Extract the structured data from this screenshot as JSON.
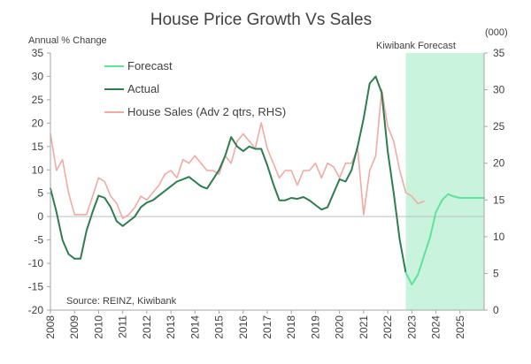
{
  "chart_data": {
    "type": "line",
    "title": "House Price Growth Vs Sales",
    "left_axis_label": "Annual % Change",
    "right_axis_label": "(000)",
    "forecast_region_label": "Kiwibank Forecast",
    "source": "Source: REINZ, Kiwibank",
    "x_labels": [
      "2008",
      "2009",
      "2010",
      "2011",
      "2012",
      "2013",
      "2014",
      "2015",
      "2016",
      "2017",
      "2018",
      "2019",
      "2020",
      "2021",
      "2022",
      "2023",
      "2024",
      "2025"
    ],
    "xlim": [
      2008,
      2026
    ],
    "ylim_left": [
      -20,
      35
    ],
    "ylim_right": [
      0,
      35
    ],
    "left_ticks": [
      -20,
      -15,
      -10,
      -5,
      0,
      5,
      10,
      15,
      20,
      25,
      30,
      35
    ],
    "right_ticks": [
      0,
      5,
      10,
      15,
      20,
      25,
      30,
      35
    ],
    "forecast_region": [
      2022.75,
      2026
    ],
    "legend": [
      "Forecast",
      "Actual",
      "House Sales (Adv 2 qtrs, RHS)"
    ],
    "colors": {
      "actual": "#2e7d4f",
      "forecast": "#5ee39a",
      "sales": "#f2aaa2",
      "forecast_band": "#c9f3dc",
      "axis": "#a6a6a6"
    },
    "series": [
      {
        "name": "Actual",
        "axis": "left",
        "x": [
          2008.0,
          2008.25,
          2008.5,
          2008.75,
          2009.0,
          2009.25,
          2009.5,
          2009.75,
          2010.0,
          2010.25,
          2010.5,
          2010.75,
          2011.0,
          2011.25,
          2011.5,
          2011.75,
          2012.0,
          2012.25,
          2012.5,
          2012.75,
          2013.0,
          2013.25,
          2013.5,
          2013.75,
          2014.0,
          2014.25,
          2014.5,
          2014.75,
          2015.0,
          2015.25,
          2015.5,
          2015.75,
          2016.0,
          2016.25,
          2016.5,
          2016.75,
          2017.0,
          2017.25,
          2017.5,
          2017.75,
          2018.0,
          2018.25,
          2018.5,
          2018.75,
          2019.0,
          2019.25,
          2019.5,
          2019.75,
          2020.0,
          2020.25,
          2020.5,
          2020.75,
          2021.0,
          2021.25,
          2021.5,
          2021.75,
          2022.0,
          2022.25,
          2022.5,
          2022.75
        ],
        "y": [
          6,
          1,
          -5,
          -8,
          -9,
          -9,
          -3,
          1,
          4.5,
          4,
          2,
          -1,
          -2,
          -1,
          0,
          2,
          3,
          3.5,
          4.5,
          5.5,
          6.5,
          7.5,
          8,
          8.5,
          7.5,
          6.5,
          6,
          8,
          10,
          13,
          17,
          15,
          14,
          15,
          14.5,
          14.5,
          11,
          7,
          3.5,
          3.5,
          4,
          3.8,
          4.2,
          3.5,
          2.5,
          1.5,
          2,
          5,
          8,
          7.5,
          10,
          15,
          21,
          28.5,
          30,
          26.5,
          14,
          5,
          -5,
          -12
        ]
      },
      {
        "name": "Forecast",
        "axis": "left",
        "x": [
          2022.75,
          2023.0,
          2023.25,
          2023.5,
          2023.75,
          2024.0,
          2024.25,
          2024.5,
          2024.75,
          2025.0,
          2025.25,
          2025.5,
          2025.75,
          2026.0
        ],
        "y": [
          -12,
          -14.5,
          -12.5,
          -8.5,
          -4.5,
          1,
          3.5,
          4.8,
          4.3,
          4.0,
          4.0,
          4.0,
          4.0,
          4.0
        ]
      },
      {
        "name": "House Sales (Adv 2 qtrs, RHS)",
        "axis": "right",
        "x": [
          2008.0,
          2008.25,
          2008.5,
          2008.75,
          2009.0,
          2009.25,
          2009.5,
          2009.75,
          2010.0,
          2010.25,
          2010.5,
          2010.75,
          2011.0,
          2011.25,
          2011.5,
          2011.75,
          2012.0,
          2012.25,
          2012.5,
          2012.75,
          2013.0,
          2013.25,
          2013.5,
          2013.75,
          2014.0,
          2014.25,
          2014.5,
          2014.75,
          2015.0,
          2015.25,
          2015.5,
          2015.75,
          2016.0,
          2016.25,
          2016.5,
          2016.75,
          2017.0,
          2017.25,
          2017.5,
          2017.75,
          2018.0,
          2018.25,
          2018.5,
          2018.75,
          2019.0,
          2019.25,
          2019.5,
          2019.75,
          2020.0,
          2020.25,
          2020.5,
          2020.75,
          2021.0,
          2021.25,
          2021.5,
          2021.75,
          2022.0,
          2022.25,
          2022.5,
          2022.75,
          2023.0,
          2023.25,
          2023.5
        ],
        "y": [
          24,
          19,
          20.5,
          16,
          13,
          13,
          13,
          15.5,
          18,
          17.5,
          15.5,
          14.5,
          12.5,
          13,
          14,
          15.5,
          15,
          16,
          17,
          18.5,
          19,
          18,
          20.5,
          20,
          21,
          20,
          19,
          19,
          18.5,
          21,
          20,
          23,
          24,
          23,
          22,
          25.5,
          22,
          20,
          18,
          19,
          19,
          17,
          19,
          19,
          20,
          18,
          20,
          19.5,
          18,
          20,
          20,
          22,
          13,
          19,
          21,
          30,
          25,
          23,
          19,
          16,
          15.5,
          14.5,
          14.8
        ]
      }
    ]
  }
}
